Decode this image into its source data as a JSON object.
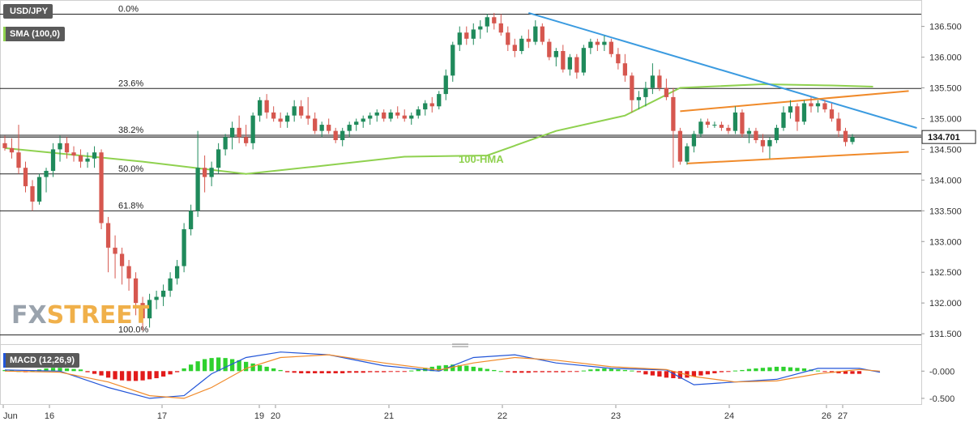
{
  "symbol": "USD/JPY",
  "sma_label": "SMA (100,0)",
  "hma_label": "100-HMA",
  "macd_label": "MACD (12,26,9)",
  "current_price": "134.701",
  "logo": {
    "part1": "FX",
    "part2": "STREET"
  },
  "colors": {
    "up": "#1f8a5b",
    "down": "#d6574f",
    "hma": "#8fd14f",
    "trend_down": "#3b9be0",
    "channel": "#f08a2a",
    "price_line": "#111111",
    "macd_line": "#2255d8",
    "signal_line": "#f08a2a",
    "hist_pos": "#2ed12e",
    "hist_neg": "#e21b1b"
  },
  "chart_data": {
    "type": "candlestick",
    "x_axis_labels": [
      "Jun",
      "16",
      "17",
      "19",
      "20",
      "21",
      "22",
      "23",
      "24",
      "26",
      "27"
    ],
    "y_tick_labels": [
      "136.500",
      "136.000",
      "135.500",
      "135.000",
      "134.500",
      "134.000",
      "133.500",
      "133.000",
      "132.500",
      "132.000",
      "131.500"
    ],
    "y_ticks": [
      136.5,
      136.0,
      135.5,
      135.0,
      134.5,
      134.0,
      133.5,
      133.0,
      132.5,
      132.0,
      131.5
    ],
    "ylim": [
      131.33,
      136.93
    ],
    "fib_levels": [
      {
        "label": "0.0%",
        "value": 136.7
      },
      {
        "label": "23.6%",
        "value": 135.49
      },
      {
        "label": "38.2%",
        "value": 134.73
      },
      {
        "label": "50.0%",
        "value": 134.1
      },
      {
        "label": "61.8%",
        "value": 133.5
      },
      {
        "label": "100.0%",
        "value": 131.48
      }
    ],
    "current_price": 134.701,
    "candles": [
      [
        134.6,
        134.72,
        134.48,
        134.52
      ],
      [
        134.52,
        134.68,
        134.35,
        134.45
      ],
      [
        134.45,
        134.9,
        134.1,
        134.2
      ],
      [
        134.2,
        134.3,
        133.8,
        133.9
      ],
      [
        133.9,
        134.0,
        133.5,
        133.65
      ],
      [
        133.65,
        134.1,
        133.6,
        134.05
      ],
      [
        134.05,
        134.2,
        133.8,
        134.15
      ],
      [
        134.15,
        134.6,
        134.05,
        134.5
      ],
      [
        134.5,
        134.72,
        134.3,
        134.6
      ],
      [
        134.6,
        134.7,
        134.35,
        134.45
      ],
      [
        134.45,
        134.55,
        134.3,
        134.4
      ],
      [
        134.4,
        134.5,
        134.2,
        134.3
      ],
      [
        134.3,
        134.45,
        134.2,
        134.35
      ],
      [
        134.35,
        134.55,
        134.2,
        134.45
      ],
      [
        134.45,
        134.5,
        133.2,
        133.3
      ],
      [
        133.3,
        133.4,
        132.5,
        132.9
      ],
      [
        132.9,
        133.1,
        132.4,
        132.8
      ],
      [
        132.8,
        132.9,
        132.3,
        132.6
      ],
      [
        132.6,
        132.7,
        132.2,
        132.4
      ],
      [
        132.4,
        132.5,
        131.8,
        132.0
      ],
      [
        132.0,
        132.1,
        131.55,
        131.75
      ],
      [
        131.75,
        132.15,
        131.6,
        132.05
      ],
      [
        132.05,
        132.2,
        131.9,
        132.1
      ],
      [
        132.1,
        132.3,
        131.95,
        132.2
      ],
      [
        132.2,
        132.5,
        132.1,
        132.4
      ],
      [
        132.4,
        132.7,
        132.3,
        132.6
      ],
      [
        132.6,
        133.3,
        132.5,
        133.2
      ],
      [
        133.2,
        133.6,
        133.1,
        133.5
      ],
      [
        133.5,
        134.8,
        133.4,
        134.2
      ],
      [
        134.2,
        134.4,
        133.8,
        134.05
      ],
      [
        134.05,
        134.3,
        133.9,
        134.2
      ],
      [
        134.2,
        134.6,
        134.1,
        134.5
      ],
      [
        134.5,
        134.75,
        134.4,
        134.7
      ],
      [
        134.7,
        134.95,
        134.5,
        134.85
      ],
      [
        134.85,
        135.05,
        134.6,
        134.7
      ],
      [
        134.7,
        134.9,
        134.55,
        134.6
      ],
      [
        134.6,
        135.1,
        134.5,
        135.05
      ],
      [
        135.05,
        135.35,
        134.95,
        135.3
      ],
      [
        135.3,
        135.4,
        135.0,
        135.1
      ],
      [
        135.1,
        135.2,
        134.95,
        135.0
      ],
      [
        135.0,
        135.1,
        134.85,
        134.95
      ],
      [
        134.95,
        135.1,
        134.85,
        135.05
      ],
      [
        135.05,
        135.3,
        134.95,
        135.2
      ],
      [
        135.2,
        135.3,
        135.0,
        135.05
      ],
      [
        135.05,
        135.35,
        134.9,
        135.0
      ],
      [
        135.0,
        135.1,
        134.75,
        134.8
      ],
      [
        134.8,
        134.95,
        134.7,
        134.9
      ],
      [
        134.9,
        135.0,
        134.75,
        134.8
      ],
      [
        134.8,
        134.85,
        134.6,
        134.65
      ],
      [
        134.65,
        134.85,
        134.55,
        134.8
      ],
      [
        134.8,
        134.95,
        134.7,
        134.9
      ],
      [
        134.9,
        135.0,
        134.8,
        134.95
      ],
      [
        134.95,
        135.05,
        134.85,
        135.0
      ],
      [
        135.0,
        135.1,
        134.9,
        135.05
      ],
      [
        135.05,
        135.15,
        134.95,
        135.1
      ],
      [
        135.1,
        135.15,
        134.95,
        135.0
      ],
      [
        135.0,
        135.15,
        134.95,
        135.1
      ],
      [
        135.1,
        135.2,
        135.0,
        135.05
      ],
      [
        135.05,
        135.15,
        134.95,
        135.0
      ],
      [
        135.0,
        135.1,
        134.9,
        135.05
      ],
      [
        135.05,
        135.2,
        135.0,
        135.15
      ],
      [
        135.15,
        135.3,
        135.05,
        135.25
      ],
      [
        135.25,
        135.35,
        135.1,
        135.2
      ],
      [
        135.2,
        135.45,
        135.15,
        135.4
      ],
      [
        135.4,
        135.8,
        135.3,
        135.7
      ],
      [
        135.7,
        136.25,
        135.6,
        136.2
      ],
      [
        136.2,
        136.5,
        136.1,
        136.4
      ],
      [
        136.4,
        136.5,
        136.2,
        136.3
      ],
      [
        136.3,
        136.55,
        136.2,
        136.45
      ],
      [
        136.45,
        136.6,
        136.3,
        136.5
      ],
      [
        136.5,
        136.7,
        136.4,
        136.65
      ],
      [
        136.65,
        136.72,
        136.45,
        136.55
      ],
      [
        136.55,
        136.7,
        136.35,
        136.4
      ],
      [
        136.4,
        136.5,
        136.1,
        136.2
      ],
      [
        136.2,
        136.3,
        136.0,
        136.1
      ],
      [
        136.1,
        136.35,
        136.05,
        136.3
      ],
      [
        136.3,
        136.45,
        136.15,
        136.25
      ],
      [
        136.25,
        136.6,
        136.2,
        136.5
      ],
      [
        136.5,
        136.55,
        136.2,
        136.25
      ],
      [
        136.25,
        136.3,
        135.95,
        136.0
      ],
      [
        136.0,
        136.15,
        135.85,
        136.1
      ],
      [
        136.1,
        136.2,
        135.75,
        135.8
      ],
      [
        135.8,
        136.05,
        135.7,
        136.0
      ],
      [
        136.0,
        136.05,
        135.65,
        135.75
      ],
      [
        135.75,
        136.2,
        135.7,
        136.15
      ],
      [
        136.15,
        136.3,
        136.05,
        136.25
      ],
      [
        136.25,
        136.3,
        136.1,
        136.2
      ],
      [
        136.2,
        136.35,
        136.1,
        136.25
      ],
      [
        136.25,
        136.3,
        136.0,
        136.05
      ],
      [
        136.05,
        136.15,
        135.8,
        135.9
      ],
      [
        135.9,
        136.05,
        135.6,
        135.7
      ],
      [
        135.7,
        135.75,
        135.1,
        135.3
      ],
      [
        135.3,
        135.45,
        135.15,
        135.35
      ],
      [
        135.35,
        135.6,
        135.2,
        135.5
      ],
      [
        135.5,
        135.9,
        135.4,
        135.7
      ],
      [
        135.7,
        135.8,
        135.45,
        135.5
      ],
      [
        135.5,
        135.65,
        135.3,
        135.35
      ],
      [
        135.35,
        135.5,
        134.2,
        134.8
      ],
      [
        134.8,
        134.85,
        134.25,
        134.3
      ],
      [
        134.3,
        134.6,
        134.25,
        134.55
      ],
      [
        134.55,
        134.8,
        134.45,
        134.75
      ],
      [
        134.75,
        135.0,
        134.7,
        134.95
      ],
      [
        134.95,
        135.0,
        134.85,
        134.9
      ],
      [
        134.9,
        134.95,
        134.85,
        134.9
      ],
      [
        134.9,
        134.95,
        134.8,
        134.85
      ],
      [
        134.85,
        134.9,
        134.75,
        134.8
      ],
      [
        134.8,
        135.2,
        134.75,
        135.1
      ],
      [
        135.1,
        135.15,
        134.7,
        134.75
      ],
      [
        134.75,
        134.85,
        134.6,
        134.8
      ],
      [
        134.8,
        134.85,
        134.6,
        134.65
      ],
      [
        134.65,
        134.75,
        134.45,
        134.55
      ],
      [
        134.55,
        134.7,
        134.35,
        134.65
      ],
      [
        134.65,
        134.9,
        134.6,
        134.85
      ],
      [
        134.85,
        135.2,
        134.8,
        135.1
      ],
      [
        135.1,
        135.3,
        135.0,
        135.2
      ],
      [
        135.2,
        135.25,
        134.8,
        134.95
      ],
      [
        134.95,
        135.3,
        134.9,
        135.25
      ],
      [
        135.25,
        135.35,
        135.1,
        135.2
      ],
      [
        135.2,
        135.3,
        135.1,
        135.25
      ],
      [
        135.25,
        135.3,
        135.1,
        135.15
      ],
      [
        135.15,
        135.25,
        134.95,
        135.0
      ],
      [
        135.0,
        135.1,
        134.7,
        134.8
      ],
      [
        134.8,
        134.85,
        134.55,
        134.62
      ],
      [
        134.62,
        134.75,
        134.58,
        134.7
      ]
    ],
    "hma_100": [
      [
        0,
        134.52
      ],
      [
        20,
        134.3
      ],
      [
        35,
        134.1
      ],
      [
        45,
        134.22
      ],
      [
        58,
        134.38
      ],
      [
        70,
        134.4
      ],
      [
        80,
        134.8
      ],
      [
        90,
        135.05
      ],
      [
        98,
        135.5
      ],
      [
        110,
        135.56
      ],
      [
        120,
        135.54
      ],
      [
        126,
        135.52
      ]
    ],
    "trendline_down": [
      [
        76,
        136.72
      ],
      [
        130,
        134.98
      ]
    ],
    "channel_upper": [
      [
        98,
        135.12
      ],
      [
        130,
        135.45
      ]
    ],
    "channel_lower": [
      [
        99,
        134.27
      ],
      [
        130,
        134.46
      ]
    ],
    "macd": {
      "y_tick_labels": [
        "-0.000",
        "-0.500"
      ],
      "y_ticks": [
        0.0,
        -0.5
      ],
      "ylim": [
        -0.62,
        0.45
      ],
      "macd_line": [
        [
          0,
          0.02
        ],
        [
          8,
          0.0
        ],
        [
          15,
          -0.3
        ],
        [
          21,
          -0.5
        ],
        [
          26,
          -0.45
        ],
        [
          30,
          -0.05
        ],
        [
          35,
          0.25
        ],
        [
          40,
          0.35
        ],
        [
          47,
          0.3
        ],
        [
          55,
          0.1
        ],
        [
          63,
          0.0
        ],
        [
          68,
          0.25
        ],
        [
          74,
          0.3
        ],
        [
          80,
          0.15
        ],
        [
          88,
          0.05
        ],
        [
          96,
          0.02
        ],
        [
          100,
          -0.25
        ],
        [
          106,
          -0.2
        ],
        [
          112,
          -0.15
        ],
        [
          118,
          0.05
        ],
        [
          124,
          0.05
        ],
        [
          127,
          -0.02
        ]
      ],
      "signal_line": [
        [
          0,
          0.0
        ],
        [
          8,
          -0.02
        ],
        [
          15,
          -0.2
        ],
        [
          21,
          -0.45
        ],
        [
          26,
          -0.5
        ],
        [
          30,
          -0.3
        ],
        [
          35,
          0.05
        ],
        [
          40,
          0.25
        ],
        [
          47,
          0.3
        ],
        [
          55,
          0.15
        ],
        [
          63,
          0.02
        ],
        [
          68,
          0.15
        ],
        [
          74,
          0.25
        ],
        [
          80,
          0.2
        ],
        [
          88,
          0.08
        ],
        [
          96,
          0.03
        ],
        [
          100,
          -0.1
        ],
        [
          106,
          -0.2
        ],
        [
          112,
          -0.18
        ],
        [
          118,
          -0.05
        ],
        [
          124,
          0.03
        ],
        [
          127,
          0.0
        ]
      ],
      "histogram": [
        0.02,
        0.02,
        0.0,
        -0.02,
        0.01,
        0.03,
        0.05,
        0.06,
        0.06,
        0.05,
        0.04,
        0.03,
        -0.02,
        -0.05,
        -0.08,
        -0.12,
        -0.15,
        -0.17,
        -0.18,
        -0.18,
        -0.17,
        -0.15,
        -0.13,
        -0.1,
        -0.06,
        -0.02,
        0.05,
        0.12,
        0.18,
        0.22,
        0.24,
        0.25,
        0.24,
        0.22,
        0.2,
        0.17,
        0.14,
        0.11,
        0.08,
        0.05,
        0.02,
        -0.02,
        -0.03,
        -0.04,
        -0.04,
        -0.04,
        -0.04,
        -0.04,
        -0.04,
        -0.04,
        -0.03,
        -0.03,
        -0.03,
        -0.02,
        -0.02,
        -0.02,
        -0.01,
        -0.01,
        -0.01,
        0.01,
        0.03,
        0.06,
        0.08,
        0.1,
        0.11,
        0.12,
        0.11,
        0.1,
        0.08,
        0.06,
        0.04,
        0.02,
        0.0,
        -0.02,
        -0.03,
        -0.03,
        -0.03,
        -0.02,
        -0.02,
        -0.02,
        -0.02,
        -0.02,
        -0.01,
        -0.01,
        0.01,
        0.03,
        0.04,
        0.05,
        0.04,
        0.03,
        0.02,
        0.01,
        -0.02,
        -0.06,
        -0.08,
        -0.1,
        -0.12,
        -0.13,
        -0.14,
        -0.12,
        -0.1,
        -0.08,
        -0.06,
        -0.04,
        -0.02,
        -0.01,
        0.01,
        0.02,
        0.04,
        0.05,
        0.06,
        0.07,
        0.08,
        0.08,
        0.07,
        0.06,
        0.05,
        0.03,
        0.01,
        -0.01,
        -0.03,
        -0.04,
        -0.05,
        -0.05,
        -0.05
      ]
    }
  }
}
